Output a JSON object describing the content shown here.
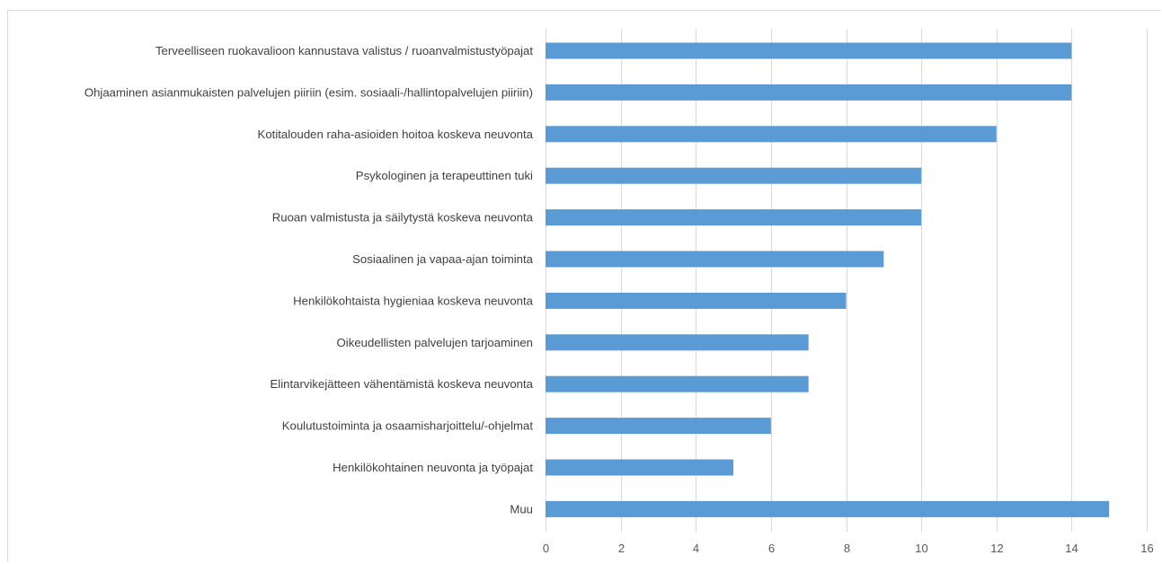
{
  "chart_data": {
    "type": "bar",
    "orientation": "horizontal",
    "title": "",
    "xlabel": "",
    "ylabel": "",
    "categories": [
      "Terveelliseen ruokavalioon kannustava valistus / ruoanvalmistustyöpajat",
      "Ohjaaminen asianmukaisten palvelujen piiriin (esim. sosiaali-/hallintopalvelujen piiriin)",
      "Kotitalouden raha-asioiden hoitoa koskeva neuvonta",
      "Psykologinen ja terapeuttinen tuki",
      "Ruoan valmistusta ja säilytystä koskeva neuvonta",
      "Sosiaalinen ja vapaa-ajan toiminta",
      "Henkilökohtaista hygieniaa koskeva neuvonta",
      "Oikeudellisten palvelujen tarjoaminen",
      "Elintarvikejätteen vähentämistä koskeva neuvonta",
      "Koulutustoiminta ja osaamisharjoittelu/-ohjelmat",
      "Henkilökohtainen neuvonta ja työpajat",
      "Muu"
    ],
    "values": [
      14,
      14,
      12,
      10,
      10,
      9,
      8,
      7,
      7,
      6,
      5,
      15
    ],
    "xlim": [
      0,
      16
    ],
    "xticks": [
      "0",
      "2",
      "4",
      "6",
      "8",
      "10",
      "12",
      "14",
      "16"
    ],
    "grid": true,
    "legend": "none",
    "bar_color": "#5b9bd5",
    "grid_color": "#d9d9d9"
  }
}
